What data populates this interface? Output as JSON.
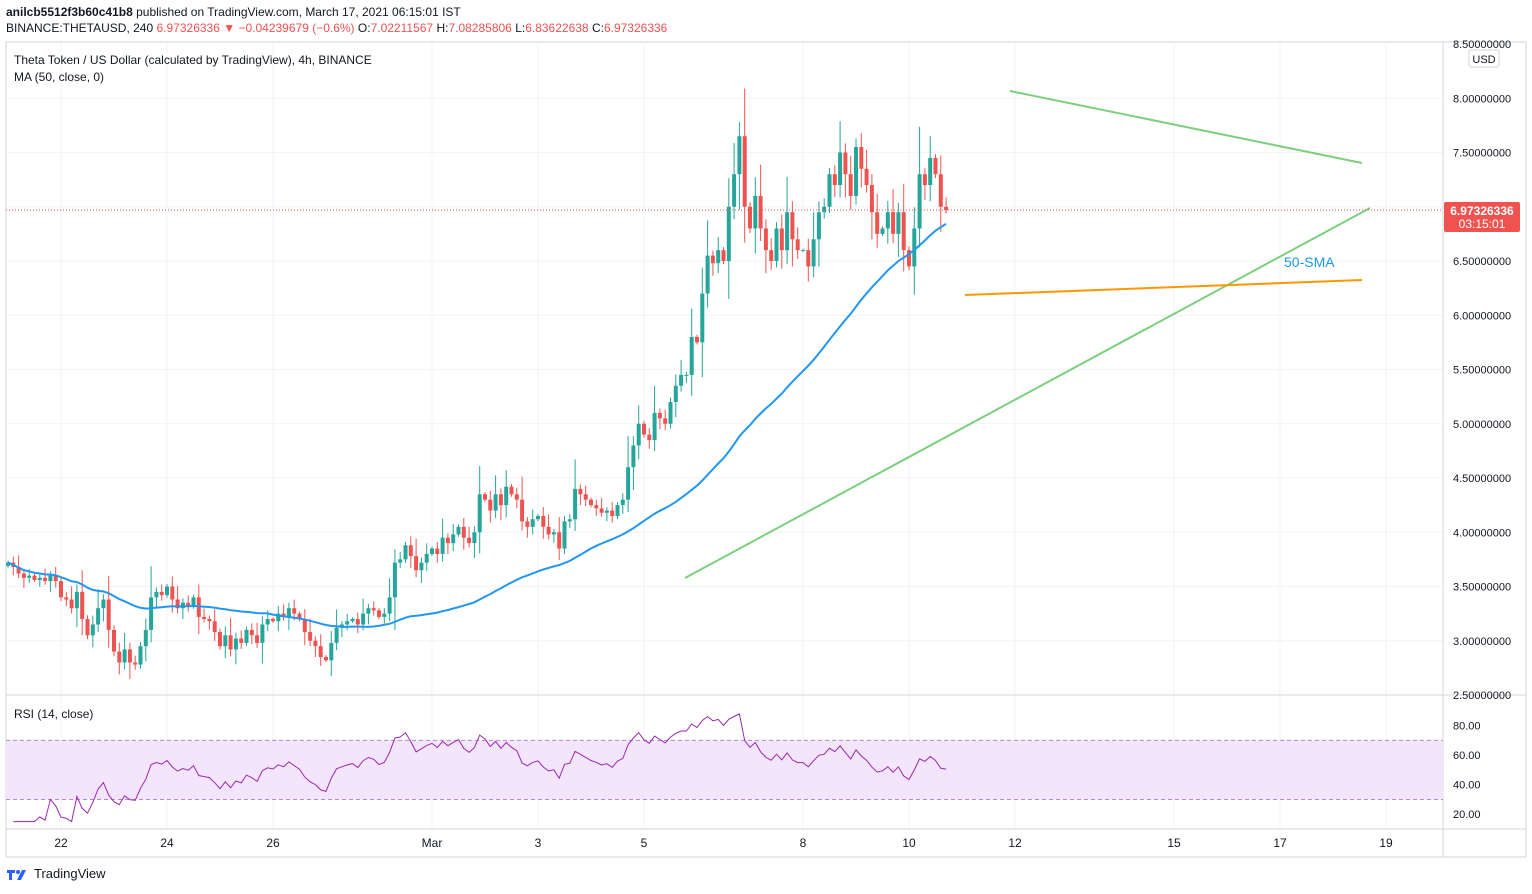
{
  "header": {
    "user": "anilcb5512f3b60c41b8",
    "published_text": "published on TradingView.com, March 17, 2021 06:15:01 IST",
    "symbol_line_prefix": "BINANCE:THETAUSD, 240",
    "last_price": "6.97326336",
    "change_text": "▼ −0.04239679 (−0.6%)",
    "o_label": "O:",
    "o_value": "7.02211567",
    "h_label": "H:",
    "h_value": "7.08285806",
    "l_label": "L:",
    "l_value": "6.83622638",
    "c_label": "C:",
    "c_value": "6.97326336"
  },
  "footer": {
    "brand": "TradingView"
  },
  "colors": {
    "up": "#26a69a",
    "down": "#ef5350",
    "sma": "#2196f3",
    "trend_green": "#7ccf7c",
    "trend_orange": "#ff9800",
    "rsi_line": "#9c27b0",
    "rsi_band": "#f3e5fb",
    "grid": "#f0f3fa"
  },
  "chart_data": [
    {
      "type": "candlestick",
      "title": "Theta Token / US Dollar (calculated by TradingView), 4h, BINANCE",
      "indicator_label": "MA (50, close, 0)",
      "currency_label": "USD",
      "ylim": [
        2.5,
        8.5
      ],
      "y_ticks": [
        "8.00000000",
        "7.50000000",
        "7.00000000",
        "6.50000000",
        "6.00000000",
        "5.50000000",
        "5.00000000",
        "4.50000000",
        "4.00000000",
        "3.50000000",
        "3.00000000",
        "2.50000000",
        "8.50000000"
      ],
      "y_tick_values": [
        8.0,
        7.5,
        7.0,
        6.5,
        6.0,
        5.5,
        5.0,
        4.5,
        4.0,
        3.5,
        3.0,
        2.5,
        8.5
      ],
      "x_tick_labels": [
        "22",
        "24",
        "26",
        "Mar",
        "3",
        "5",
        "8",
        "10",
        "12",
        "15",
        "17",
        "19"
      ],
      "x_tick_index": [
        10,
        30,
        50,
        80,
        100,
        120,
        150,
        170,
        190,
        220,
        240,
        260
      ],
      "last_price_label": "6.97326336",
      "countdown_label": "03:15:01",
      "sma_label": "50-SMA",
      "closes": [
        3.72,
        3.68,
        3.62,
        3.58,
        3.6,
        3.56,
        3.58,
        3.55,
        3.6,
        3.55,
        3.4,
        3.38,
        3.3,
        3.45,
        3.2,
        3.05,
        3.15,
        3.3,
        3.38,
        3.1,
        2.9,
        2.8,
        2.92,
        2.8,
        2.78,
        2.95,
        3.1,
        3.4,
        3.45,
        3.42,
        3.5,
        3.38,
        3.3,
        3.35,
        3.32,
        3.4,
        3.22,
        3.2,
        3.18,
        3.08,
        2.95,
        3.05,
        2.92,
        3.02,
        2.98,
        3.1,
        3.05,
        2.98,
        3.15,
        3.2,
        3.18,
        3.25,
        3.22,
        3.3,
        3.25,
        3.2,
        3.08,
        3.0,
        2.95,
        2.85,
        2.82,
        2.98,
        3.12,
        3.15,
        3.18,
        3.2,
        3.15,
        3.25,
        3.3,
        3.28,
        3.22,
        3.25,
        3.4,
        3.72,
        3.75,
        3.88,
        3.78,
        3.65,
        3.72,
        3.8,
        3.85,
        3.8,
        3.95,
        3.9,
        3.98,
        4.05,
        3.95,
        3.9,
        4.0,
        4.35,
        4.3,
        4.2,
        4.35,
        4.25,
        4.42,
        4.35,
        4.3,
        4.1,
        4.05,
        4.12,
        4.15,
        4.05,
        3.98,
        4.0,
        3.85,
        4.1,
        4.12,
        4.4,
        4.35,
        4.3,
        4.25,
        4.22,
        4.18,
        4.2,
        4.15,
        4.25,
        4.3,
        4.6,
        4.8,
        5.0,
        4.9,
        4.85,
        5.1,
        5.05,
        5.0,
        5.2,
        5.35,
        5.45,
        5.45,
        5.8,
        5.75,
        6.2,
        6.55,
        6.48,
        6.6,
        6.5,
        7.0,
        7.3,
        7.65,
        7.0,
        6.8,
        7.1,
        6.8,
        6.6,
        6.5,
        6.8,
        6.6,
        6.95,
        6.7,
        6.6,
        6.6,
        6.45,
        6.7,
        6.95,
        7.0,
        7.3,
        7.2,
        7.5,
        7.3,
        7.1,
        7.55,
        7.35,
        7.2,
        6.95,
        6.75,
        6.8,
        6.95,
        6.75,
        6.95,
        6.6,
        6.45,
        6.8,
        7.3,
        7.2,
        7.45,
        7.3,
        7.0,
        6.97
      ]
    },
    {
      "type": "line",
      "title": "RSI (14, close)",
      "ylim": [
        10,
        100
      ],
      "y_ticks": [
        "80.00",
        "60.00",
        "40.00",
        "20.00"
      ],
      "y_tick_values": [
        80,
        60,
        40,
        20
      ],
      "band": [
        30,
        70
      ]
    }
  ]
}
